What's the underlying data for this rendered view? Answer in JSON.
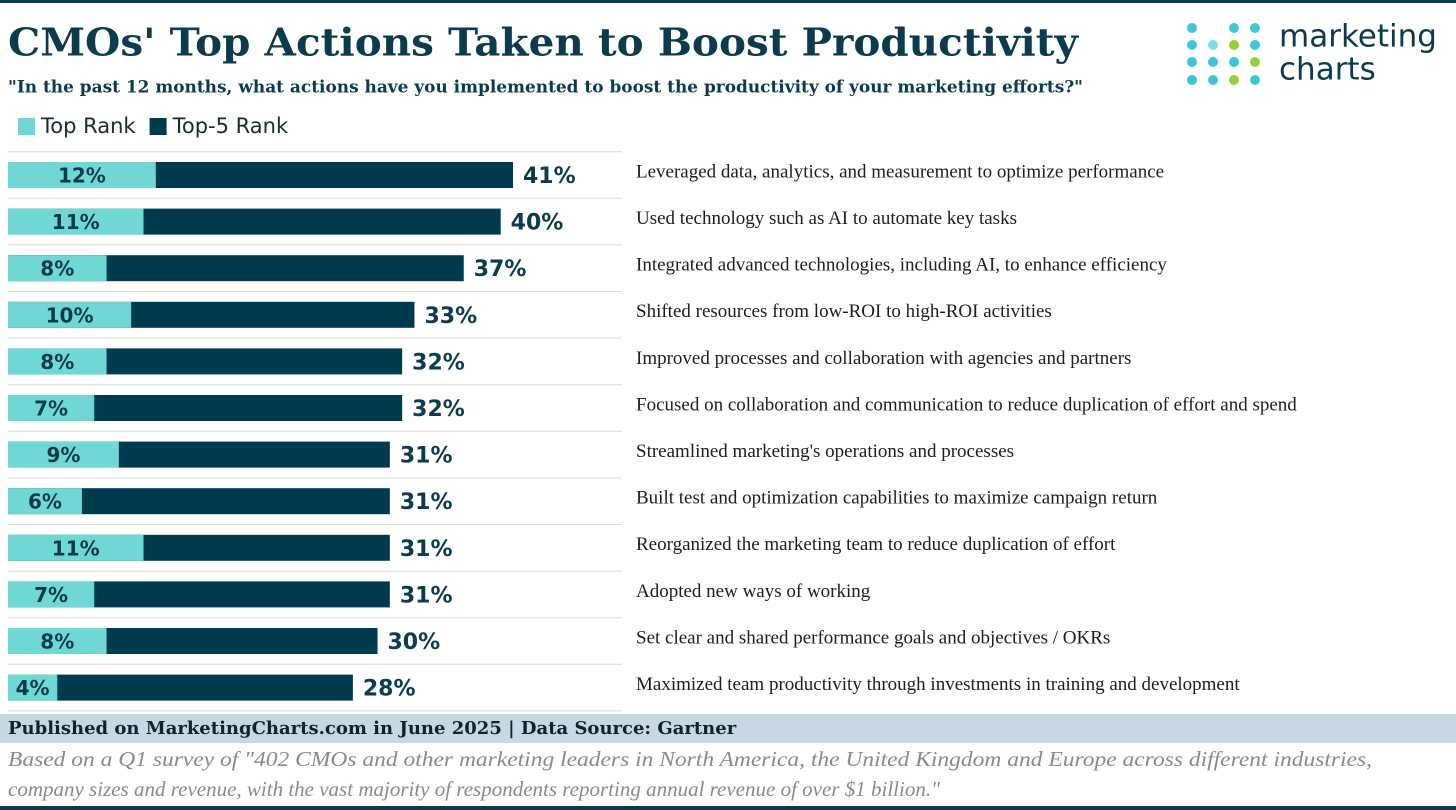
{
  "chart_data": {
    "type": "bar",
    "orientation": "horizontal",
    "title": "CMOs' Top Actions Taken to Boost Productivity",
    "subtitle": "\"In the past 12 months, what actions have you implemented to boost the productivity of your marketing efforts?\"",
    "categories": [
      "Leveraged data, analytics, and measurement to optimize performance",
      "Used technology such as AI to automate key tasks",
      "Integrated advanced technologies, including AI, to enhance efficiency",
      "Shifted resources from low-ROI to high-ROI activities",
      "Improved processes and collaboration with agencies and partners",
      "Focused on collaboration and communication to reduce duplication of effort and spend",
      "Streamlined marketing's operations and processes",
      "Built test and optimization capabilities to maximize campaign return",
      "Reorganized the marketing team to reduce duplication of effort",
      "Adopted new ways of working",
      "Set clear and shared performance goals and objectives / OKRs",
      "Maximized team productivity through investments in training and development"
    ],
    "series": [
      {
        "name": "Top Rank",
        "color": "#6fd8d4",
        "values": [
          12,
          11,
          8,
          10,
          8,
          7,
          9,
          6,
          11,
          7,
          8,
          4
        ],
        "value_labels": [
          "12%",
          "11%",
          "8%",
          "10%",
          "8%",
          "7%",
          "9%",
          "6%",
          "11%",
          "7%",
          "8%",
          "4%"
        ]
      },
      {
        "name": "Top-5 Rank",
        "color": "#003a4f",
        "values": [
          41,
          40,
          37,
          33,
          32,
          32,
          31,
          31,
          31,
          31,
          30,
          28
        ],
        "value_labels": [
          "41%",
          "40%",
          "37%",
          "33%",
          "32%",
          "32%",
          "31%",
          "31%",
          "31%",
          "31%",
          "30%",
          "28%"
        ]
      }
    ],
    "legend": "top-left",
    "source": "Published on MarketingCharts.com in June 2025 | Data Source: Gartner",
    "note": [
      "Based on a Q1 survey of \"402 CMOs and other marketing leaders in North America, the United Kingdom and Europe across different industries,",
      "company sizes and revenue, with the vast majority of respondents reporting annual revenue of over $1 billion.\""
    ],
    "logo": [
      "marketing",
      "charts"
    ]
  }
}
